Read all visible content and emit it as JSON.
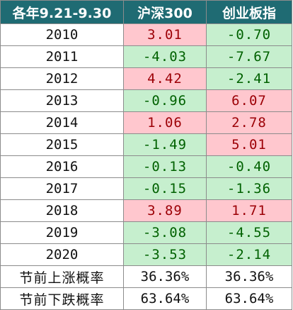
{
  "header": {
    "col0": "各年9.21-9.30",
    "col1": "沪深300",
    "col2": "创业板指"
  },
  "rows": [
    {
      "year": "2010",
      "hs300": "3.01",
      "cyb": "-0.70",
      "hs300_dir": "up",
      "cyb_dir": "down"
    },
    {
      "year": "2011",
      "hs300": "-4.03",
      "cyb": "-7.67",
      "hs300_dir": "down",
      "cyb_dir": "down"
    },
    {
      "year": "2012",
      "hs300": "4.42",
      "cyb": "-2.41",
      "hs300_dir": "up",
      "cyb_dir": "down"
    },
    {
      "year": "2013",
      "hs300": "-0.96",
      "cyb": "6.07",
      "hs300_dir": "down",
      "cyb_dir": "up"
    },
    {
      "year": "2014",
      "hs300": "1.06",
      "cyb": "2.78",
      "hs300_dir": "up",
      "cyb_dir": "up"
    },
    {
      "year": "2015",
      "hs300": "-1.49",
      "cyb": "5.01",
      "hs300_dir": "down",
      "cyb_dir": "up"
    },
    {
      "year": "2016",
      "hs300": "-0.13",
      "cyb": "-0.40",
      "hs300_dir": "down",
      "cyb_dir": "down"
    },
    {
      "year": "2017",
      "hs300": "-0.15",
      "cyb": "-1.36",
      "hs300_dir": "down",
      "cyb_dir": "down"
    },
    {
      "year": "2018",
      "hs300": "3.89",
      "cyb": "1.71",
      "hs300_dir": "up",
      "cyb_dir": "up"
    },
    {
      "year": "2019",
      "hs300": "-3.08",
      "cyb": "-4.55",
      "hs300_dir": "down",
      "cyb_dir": "down"
    },
    {
      "year": "2020",
      "hs300": "-3.53",
      "cyb": "-2.14",
      "hs300_dir": "down",
      "cyb_dir": "down"
    }
  ],
  "summary": {
    "up_label": "节前上涨概率",
    "up_hs300": "36.36%",
    "up_cyb": "36.36%",
    "down_label": "节前下跌概率",
    "down_hs300": "63.64%",
    "down_cyb": "63.64%"
  },
  "colors": {
    "header_bg": "#1f6b73",
    "up_bg": "#ffc7ce",
    "up_text": "#9c0006",
    "down_bg": "#c6efce",
    "down_text": "#006100"
  }
}
